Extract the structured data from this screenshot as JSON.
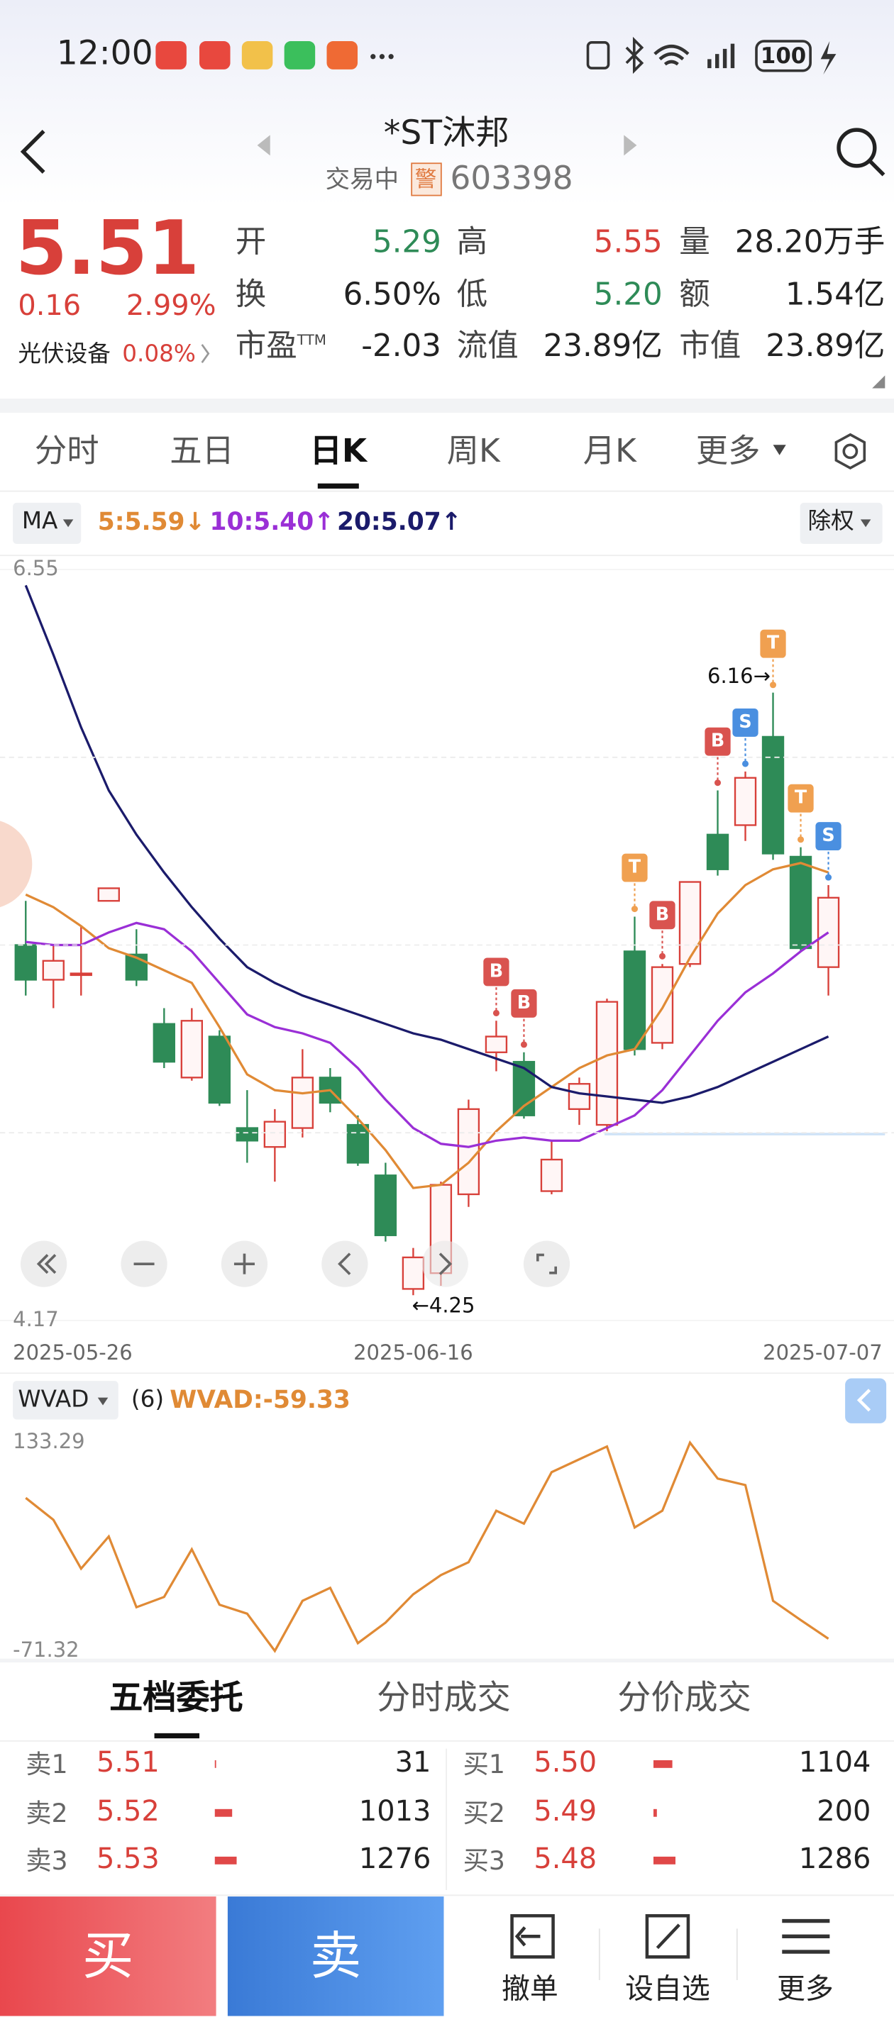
{
  "status_bar": {
    "time": "12:00",
    "battery": "100"
  },
  "header": {
    "title": "*ST沐邦",
    "status": "交易中",
    "badge": "警",
    "code": "603398"
  },
  "quote": {
    "price": "5.51",
    "change": "0.16",
    "change_pct": "2.99%",
    "sector": "光伏设备",
    "sector_change": "0.08%",
    "fields": [
      {
        "label": "开",
        "value": "5.29",
        "color": "#2e8b57"
      },
      {
        "label": "高",
        "value": "5.55",
        "color": "#d8403a"
      },
      {
        "label": "量",
        "value": "28.20万手",
        "color": "#222222"
      },
      {
        "label": "换",
        "value": "6.50%",
        "color": "#222222"
      },
      {
        "label": "低",
        "value": "5.20",
        "color": "#2e8b57"
      },
      {
        "label": "额",
        "value": "1.54亿",
        "color": "#222222"
      },
      {
        "label": "市盈",
        "sup": "TTM",
        "value": "-2.03",
        "color": "#222222"
      },
      {
        "label": "流值",
        "value": "23.89亿",
        "color": "#222222"
      },
      {
        "label": "市值",
        "value": "23.89亿",
        "color": "#222222"
      }
    ]
  },
  "tabs": [
    "分时",
    "五日",
    "日K",
    "周K",
    "月K",
    "更多"
  ],
  "chart_data": [
    {
      "type": "candlestick",
      "indicator": "MA",
      "adjust": "除权",
      "categories": [
        "2025-05-26",
        null,
        null,
        null,
        null,
        null,
        null,
        null,
        null,
        null,
        null,
        null,
        null,
        null,
        "2025-06-16",
        null,
        null,
        null,
        null,
        null,
        null,
        null,
        null,
        null,
        null,
        null,
        null,
        null,
        null,
        "2025-07-07"
      ],
      "open": [
        5.36,
        5.25,
        5.27,
        5.5,
        5.33,
        5.11,
        4.94,
        5.07,
        4.78,
        4.72,
        4.78,
        4.94,
        4.79,
        4.63,
        4.27,
        4.32,
        4.57,
        5.02,
        4.99,
        4.58,
        4.84,
        4.79,
        5.34,
        5.05,
        5.3,
        5.71,
        5.74,
        6.02,
        5.64,
        5.29
      ],
      "high": [
        5.5,
        5.36,
        5.42,
        5.54,
        5.41,
        5.16,
        5.16,
        5.09,
        4.9,
        4.84,
        5.03,
        4.97,
        4.82,
        4.67,
        4.4,
        4.61,
        4.87,
        5.12,
        5.02,
        4.74,
        4.94,
        5.19,
        5.45,
        5.3,
        5.56,
        5.85,
        5.91,
        6.16,
        5.67,
        5.55
      ],
      "low": [
        5.2,
        5.16,
        5.2,
        5.5,
        5.23,
        4.97,
        4.93,
        4.85,
        4.67,
        4.61,
        4.75,
        4.83,
        4.66,
        4.42,
        4.25,
        4.28,
        4.53,
        4.96,
        4.81,
        4.57,
        4.79,
        4.77,
        5.01,
        5.03,
        5.29,
        5.58,
        5.69,
        5.63,
        5.34,
        5.2
      ],
      "close": [
        5.25,
        5.31,
        5.27,
        5.54,
        5.25,
        4.99,
        5.12,
        4.86,
        4.74,
        4.8,
        4.94,
        4.86,
        4.67,
        4.44,
        4.37,
        4.6,
        4.84,
        5.07,
        4.82,
        4.68,
        4.92,
        5.18,
        5.03,
        5.29,
        5.56,
        5.6,
        5.89,
        5.65,
        5.35,
        5.51
      ],
      "up_color": "#d8403a",
      "down_color": "#2e8b57",
      "ylim": [
        4.17,
        6.55
      ],
      "yticks": [
        6.55,
        4.17
      ],
      "series": [
        {
          "name": "5:5.59↓",
          "color": "#e08a35",
          "values": [
            5.52,
            5.48,
            5.42,
            5.35,
            5.32,
            5.28,
            5.24,
            5.1,
            4.95,
            4.9,
            4.89,
            4.9,
            4.81,
            4.71,
            4.59,
            4.6,
            4.67,
            4.77,
            4.85,
            4.91,
            4.97,
            5.01,
            5.03,
            5.16,
            5.32,
            5.46,
            5.55,
            5.6,
            5.62,
            5.59
          ]
        },
        {
          "name": "10:5.40↑",
          "color": "#9a2fd6",
          "values": [
            5.37,
            5.36,
            5.36,
            5.4,
            5.43,
            5.41,
            5.34,
            5.24,
            5.14,
            5.1,
            5.08,
            5.05,
            4.97,
            4.87,
            4.78,
            4.73,
            4.72,
            4.74,
            4.75,
            4.74,
            4.74,
            4.78,
            4.82,
            4.9,
            5.01,
            5.12,
            5.21,
            5.27,
            5.34,
            5.4
          ]
        },
        {
          "name": "20:5.07↑",
          "color": "#1b1b6b",
          "values": [
            6.5,
            6.28,
            6.05,
            5.85,
            5.71,
            5.59,
            5.48,
            5.38,
            5.29,
            5.24,
            5.2,
            5.17,
            5.14,
            5.11,
            5.08,
            5.06,
            5.03,
            5.0,
            4.97,
            4.91,
            4.89,
            4.88,
            4.87,
            4.86,
            4.88,
            4.91,
            4.95,
            4.99,
            5.03,
            5.07
          ]
        }
      ],
      "signals": [
        null,
        null,
        null,
        null,
        null,
        null,
        null,
        null,
        null,
        null,
        null,
        null,
        null,
        null,
        null,
        null,
        null,
        "B",
        "B",
        null,
        null,
        null,
        "T",
        "B",
        null,
        "B",
        "S",
        "T",
        "T",
        "S"
      ],
      "signal_colors": {
        "B": "#d9534f",
        "S": "#4a8fe0",
        "T": "#f0a050"
      },
      "annotations": [
        "6.16→",
        "←4.25"
      ]
    },
    {
      "type": "line",
      "indicator": "WVAD",
      "param": "(6)",
      "series": [
        {
          "name": "WVAD:-59.33",
          "color": "#e08a35",
          "values": [
            79.0,
            57.5,
            9.5,
            41.1,
            -28.4,
            -18.3,
            28.5,
            -25.9,
            -34.7,
            -71.32,
            -22.1,
            -9.4,
            -63.7,
            -43.5,
            -15.7,
            3.2,
            15.8,
            66.4,
            53.7,
            104.3,
            116.9,
            129.5,
            49.9,
            66.4,
            133.29,
            98.0,
            91.6,
            -22.1,
            -41.0,
            -59.33
          ]
        }
      ],
      "ylim": [
        -71.32,
        133.29
      ],
      "yticks": [
        133.29,
        -71.32
      ]
    }
  ],
  "order_book": {
    "tabs": [
      "五档委托",
      "分时成交",
      "分价成交"
    ],
    "asks": [
      {
        "label": "卖1",
        "price": "5.51",
        "volume": 31
      },
      {
        "label": "卖2",
        "price": "5.52",
        "volume": 1013
      },
      {
        "label": "卖3",
        "price": "5.53",
        "volume": 1276
      }
    ],
    "bids": [
      {
        "label": "买1",
        "price": "5.50",
        "volume": 1104
      },
      {
        "label": "买2",
        "price": "5.49",
        "volume": 200
      },
      {
        "label": "买3",
        "price": "5.48",
        "volume": 1286
      }
    ]
  },
  "trade_buttons": [
    "买",
    "卖"
  ],
  "actions": [
    "撤单",
    "设自选",
    "更多"
  ]
}
